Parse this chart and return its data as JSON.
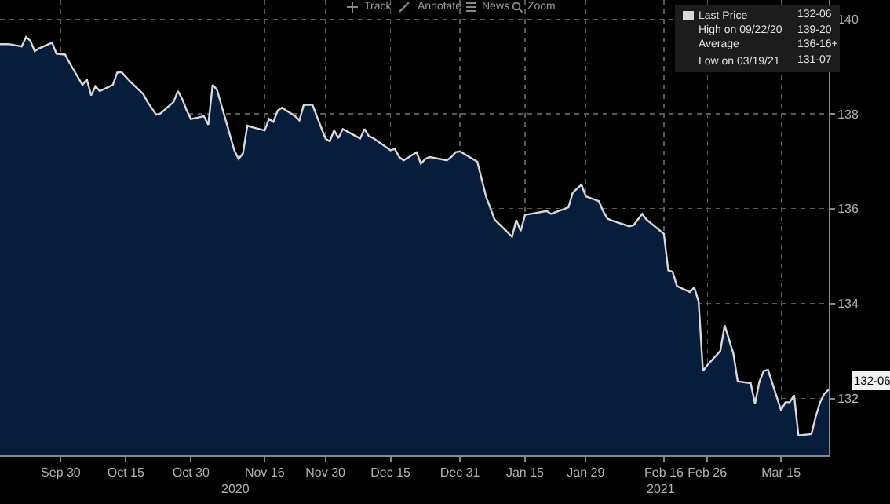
{
  "chart_data": {
    "type": "area",
    "x": [
      "2020-09-16",
      "2020-09-18",
      "2020-09-21",
      "2020-09-22",
      "2020-09-23",
      "2020-09-24",
      "2020-09-25",
      "2020-09-28",
      "2020-09-29",
      "2020-10-01",
      "2020-10-02",
      "2020-10-05",
      "2020-10-06",
      "2020-10-07",
      "2020-10-08",
      "2020-10-09",
      "2020-10-12",
      "2020-10-13",
      "2020-10-14",
      "2020-10-15",
      "2020-10-16",
      "2020-10-19",
      "2020-10-20",
      "2020-10-22",
      "2020-10-23",
      "2020-10-26",
      "2020-10-27",
      "2020-10-28",
      "2020-10-29",
      "2020-10-30",
      "2020-11-02",
      "2020-11-03",
      "2020-11-04",
      "2020-11-05",
      "2020-11-06",
      "2020-11-09",
      "2020-11-10",
      "2020-11-11",
      "2020-11-12",
      "2020-11-13",
      "2020-11-16",
      "2020-11-17",
      "2020-11-18",
      "2020-11-19",
      "2020-11-20",
      "2020-11-23",
      "2020-11-24",
      "2020-11-25",
      "2020-11-27",
      "2020-11-30",
      "2020-12-01",
      "2020-12-02",
      "2020-12-03",
      "2020-12-04",
      "2020-12-07",
      "2020-12-08",
      "2020-12-09",
      "2020-12-10",
      "2020-12-11",
      "2020-12-15",
      "2020-12-16",
      "2020-12-17",
      "2020-12-18",
      "2020-12-21",
      "2020-12-22",
      "2020-12-23",
      "2020-12-24",
      "2020-12-28",
      "2020-12-29",
      "2020-12-30",
      "2020-12-31",
      "2021-01-04",
      "2021-01-06",
      "2021-01-08",
      "2021-01-12",
      "2021-01-13",
      "2021-01-14",
      "2021-01-15",
      "2021-01-20",
      "2021-01-21",
      "2021-01-25",
      "2021-01-26",
      "2021-01-28",
      "2021-01-29",
      "2021-02-01",
      "2021-02-02",
      "2021-02-03",
      "2021-02-04",
      "2021-02-08",
      "2021-02-09",
      "2021-02-11",
      "2021-02-12",
      "2021-02-16",
      "2021-02-17",
      "2021-02-18",
      "2021-02-19",
      "2021-02-22",
      "2021-02-23",
      "2021-02-24",
      "2021-02-25",
      "2021-02-26",
      "2021-03-01",
      "2021-03-02",
      "2021-03-04",
      "2021-03-05",
      "2021-03-08",
      "2021-03-09",
      "2021-03-10",
      "2021-03-11",
      "2021-03-12",
      "2021-03-15",
      "2021-03-16",
      "2021-03-17",
      "2021-03-18",
      "2021-03-19",
      "2021-03-22",
      "2021-03-23",
      "2021-03-24",
      "2021-03-25",
      "2021-03-26"
    ],
    "series": [
      {
        "name": "Last Price",
        "color": "#d9d9d9",
        "values": [
          139.47,
          139.47,
          139.42,
          139.62,
          139.54,
          139.32,
          139.38,
          139.5,
          139.27,
          139.25,
          139.08,
          138.61,
          138.73,
          138.39,
          138.58,
          138.48,
          138.61,
          138.87,
          138.88,
          138.78,
          138.68,
          138.42,
          138.25,
          137.98,
          138.01,
          138.25,
          138.48,
          138.31,
          138.08,
          137.89,
          137.95,
          137.77,
          138.61,
          138.51,
          138.19,
          137.23,
          137.05,
          137.17,
          137.75,
          137.72,
          137.65,
          137.89,
          137.83,
          138.07,
          138.13,
          137.95,
          137.86,
          138.19,
          138.19,
          137.48,
          137.42,
          137.65,
          137.49,
          137.68,
          137.53,
          137.48,
          137.68,
          137.53,
          137.49,
          137.23,
          137.26,
          137.09,
          137.02,
          137.19,
          136.95,
          137.05,
          137.09,
          137.02,
          137.09,
          137.19,
          137.21,
          136.99,
          136.26,
          135.77,
          135.41,
          135.76,
          135.53,
          135.87,
          135.95,
          135.89,
          136.03,
          136.34,
          136.51,
          136.26,
          136.16,
          135.95,
          135.79,
          135.75,
          135.63,
          135.65,
          135.89,
          135.77,
          135.47,
          134.7,
          134.67,
          134.37,
          134.24,
          134.34,
          134.04,
          132.58,
          132.7,
          133.0,
          133.54,
          132.95,
          132.36,
          132.32,
          131.89,
          132.35,
          132.58,
          132.6,
          131.75,
          131.92,
          131.92,
          132.07,
          131.22,
          131.25,
          131.62,
          131.92,
          132.1,
          132.19
        ]
      }
    ],
    "xticks": [
      {
        "value": "2020-09-30",
        "label": "Sep 30"
      },
      {
        "value": "2020-10-15",
        "label": "Oct 15"
      },
      {
        "value": "2020-10-30",
        "label": "Oct 30"
      },
      {
        "value": "2020-11-16",
        "label": "Nov 16"
      },
      {
        "value": "2020-11-30",
        "label": "Nov 30"
      },
      {
        "value": "2020-12-15",
        "label": "Dec 15"
      },
      {
        "value": "2020-12-31",
        "label": "Dec 31"
      },
      {
        "value": "2021-01-15",
        "label": "Jan 15"
      },
      {
        "value": "2021-01-29",
        "label": "Jan 29"
      },
      {
        "value": "2021-02-16",
        "label": "Feb 16"
      },
      {
        "value": "2021-02-26",
        "label": "Feb 26"
      },
      {
        "value": "2021-03-15",
        "label": "Mar 15"
      }
    ],
    "xlim": [
      "2020-09-16",
      "2021-03-26"
    ],
    "ylim": [
      130.8,
      140.4
    ],
    "yticks": [
      132,
      134,
      136,
      138,
      140
    ],
    "grid": true,
    "legend": "top right",
    "annotations": [
      "Track",
      "Annotate",
      "News",
      "Zoom",
      "132-06",
      "High on 09/22/20",
      "139-20",
      "Average",
      "136-16+",
      "Low on 03/19/21",
      "131-07",
      "2020",
      "2021",
      {
        "text": "132-06",
        "x": "2021-03-26",
        "y": 132.19
      }
    ]
  }
}
